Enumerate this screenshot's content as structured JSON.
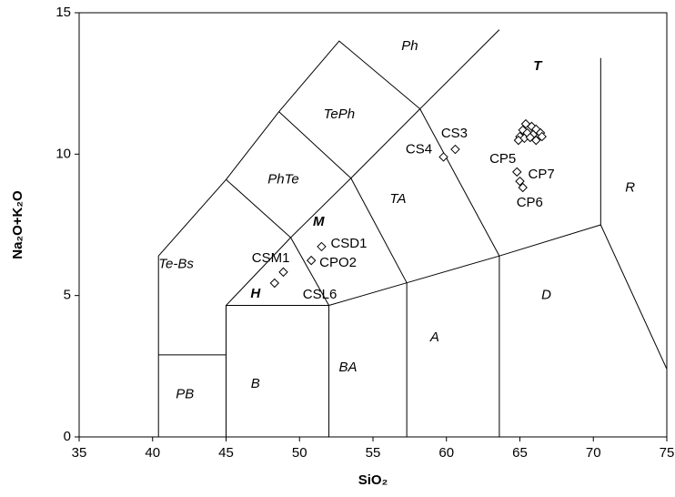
{
  "chart_data": {
    "type": "scatter",
    "x_label": "SiO₂",
    "y_label": "Na₂O+K₂O",
    "xlim": [
      35,
      75
    ],
    "ylim": [
      0,
      15
    ],
    "xticks": [
      35,
      40,
      45,
      50,
      55,
      60,
      65,
      70,
      75
    ],
    "yticks": [
      0,
      5,
      10,
      15
    ],
    "grid": false,
    "color": "#000000",
    "x": [
      60.6,
      59.8,
      51.5,
      50.8,
      48.9,
      48.3,
      64.8,
      65.0,
      65.2,
      65.4,
      65.8,
      66.1,
      65.2,
      65.5,
      65.9,
      66.4,
      65.0,
      65.3,
      65.7,
      66.1,
      66.5,
      64.9
    ],
    "values": [
      10.17,
      9.9,
      6.73,
      6.24,
      5.83,
      5.44,
      9.37,
      9.04,
      8.82,
      11.07,
      10.98,
      10.88,
      10.85,
      10.75,
      10.69,
      10.75,
      10.62,
      10.56,
      10.59,
      10.49,
      10.62,
      10.49
    ],
    "point_labels": [
      "CS3",
      "CS4",
      "CSD1",
      "CPO2",
      "CSM1",
      "CSL6",
      "CP5",
      "CP7",
      "CP6",
      null,
      null,
      null,
      null,
      null,
      null,
      null,
      null,
      null,
      null,
      null,
      null,
      null
    ],
    "field_labels": [
      "Ph",
      "TePh",
      "PhTe",
      "Te-Bs",
      "M",
      "H",
      "TA",
      "T",
      "R",
      "D",
      "A",
      "BA",
      "B",
      "PB"
    ]
  }
}
